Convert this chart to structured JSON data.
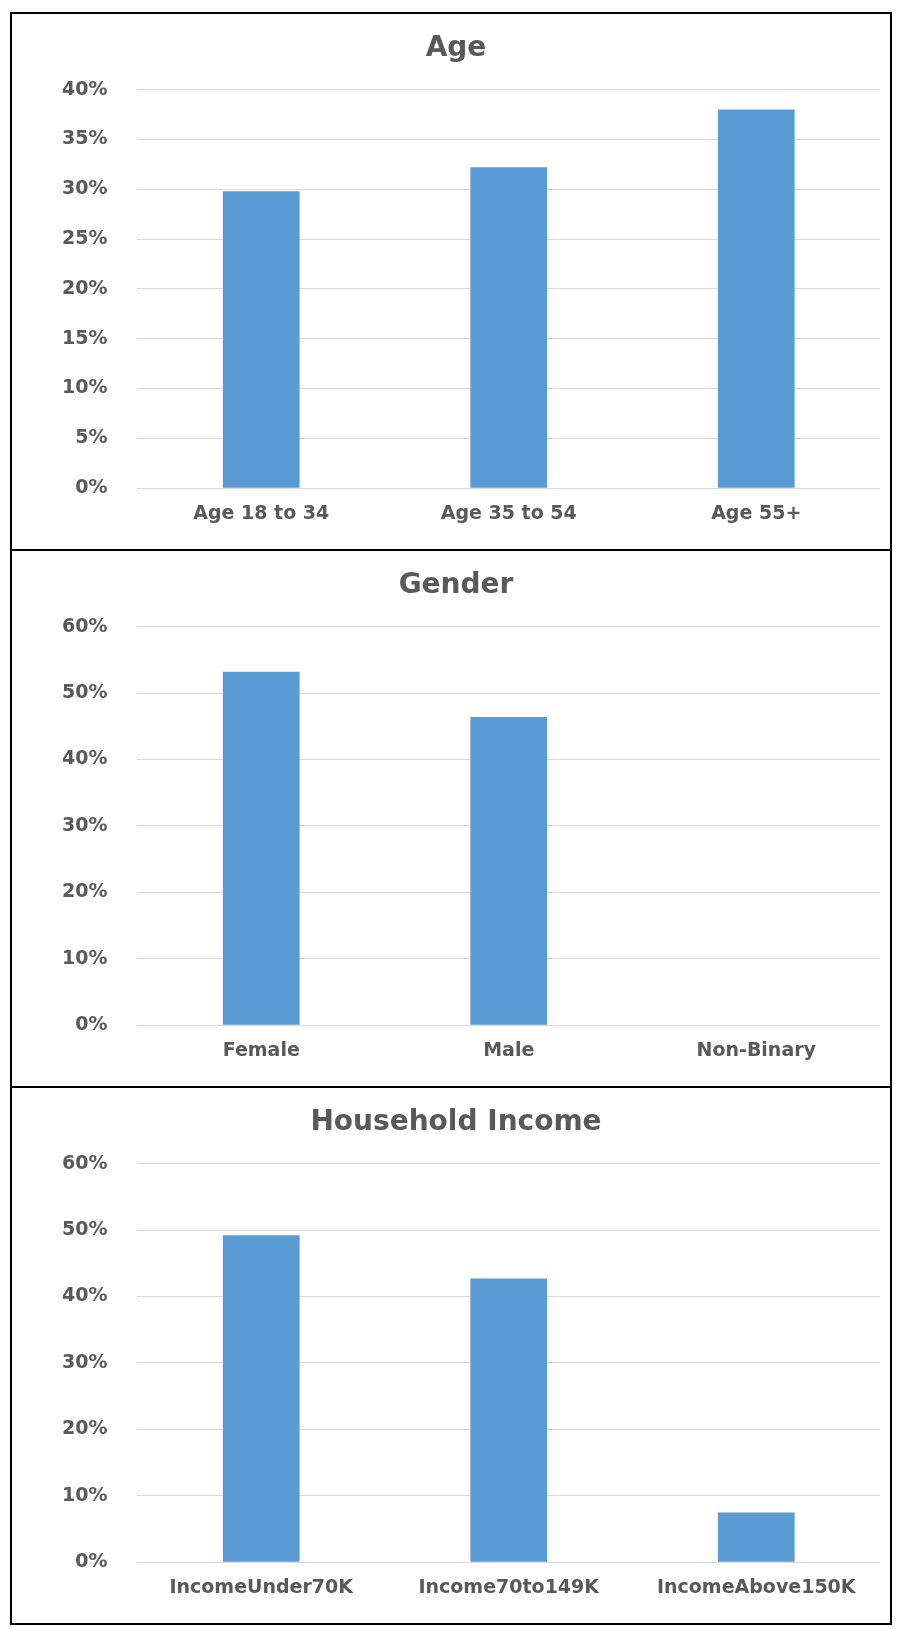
{
  "chart_data": [
    {
      "type": "bar",
      "title": "Age",
      "categories": [
        "Age 18 to 34",
        "Age 35 to 54",
        "Age 55+"
      ],
      "values": [
        29.8,
        32.2,
        38.0
      ],
      "color": "#5b9bd5",
      "ylim": [
        0,
        40
      ],
      "yticks": [
        {
          "value": 0,
          "label": "0%"
        },
        {
          "value": 5,
          "label": "5%"
        },
        {
          "value": 10,
          "label": "10%"
        },
        {
          "value": 15,
          "label": "15%"
        },
        {
          "value": 20,
          "label": "20%"
        },
        {
          "value": 25,
          "label": "25%"
        },
        {
          "value": 30,
          "label": "30%"
        },
        {
          "value": 35,
          "label": "35%"
        },
        {
          "value": 40,
          "label": "40%"
        }
      ],
      "grid": "y",
      "legend": false
    },
    {
      "type": "bar",
      "title": "Gender",
      "categories": [
        "Female",
        "Male",
        "Non-Binary"
      ],
      "values": [
        53.2,
        46.4,
        0
      ],
      "color": "#5b9bd5",
      "ylim": [
        0,
        60
      ],
      "yticks": [
        {
          "value": 0,
          "label": "0%"
        },
        {
          "value": 10,
          "label": "10%"
        },
        {
          "value": 20,
          "label": "20%"
        },
        {
          "value": 30,
          "label": "30%"
        },
        {
          "value": 40,
          "label": "40%"
        },
        {
          "value": 50,
          "label": "50%"
        },
        {
          "value": 60,
          "label": "60%"
        }
      ],
      "grid": "y",
      "legend": false
    },
    {
      "type": "bar",
      "title": "Household Income",
      "categories": [
        "IncomeUnder70K",
        "Income70to149K",
        "IncomeAbove150K"
      ],
      "values": [
        49.2,
        42.7,
        7.5
      ],
      "color": "#5b9bd5",
      "ylim": [
        0,
        60
      ],
      "yticks": [
        {
          "value": 0,
          "label": "0%"
        },
        {
          "value": 10,
          "label": "10%"
        },
        {
          "value": 20,
          "label": "20%"
        },
        {
          "value": 30,
          "label": "30%"
        },
        {
          "value": 40,
          "label": "40%"
        },
        {
          "value": 50,
          "label": "50%"
        },
        {
          "value": 60,
          "label": "60%"
        }
      ],
      "grid": "y",
      "legend": false
    }
  ]
}
